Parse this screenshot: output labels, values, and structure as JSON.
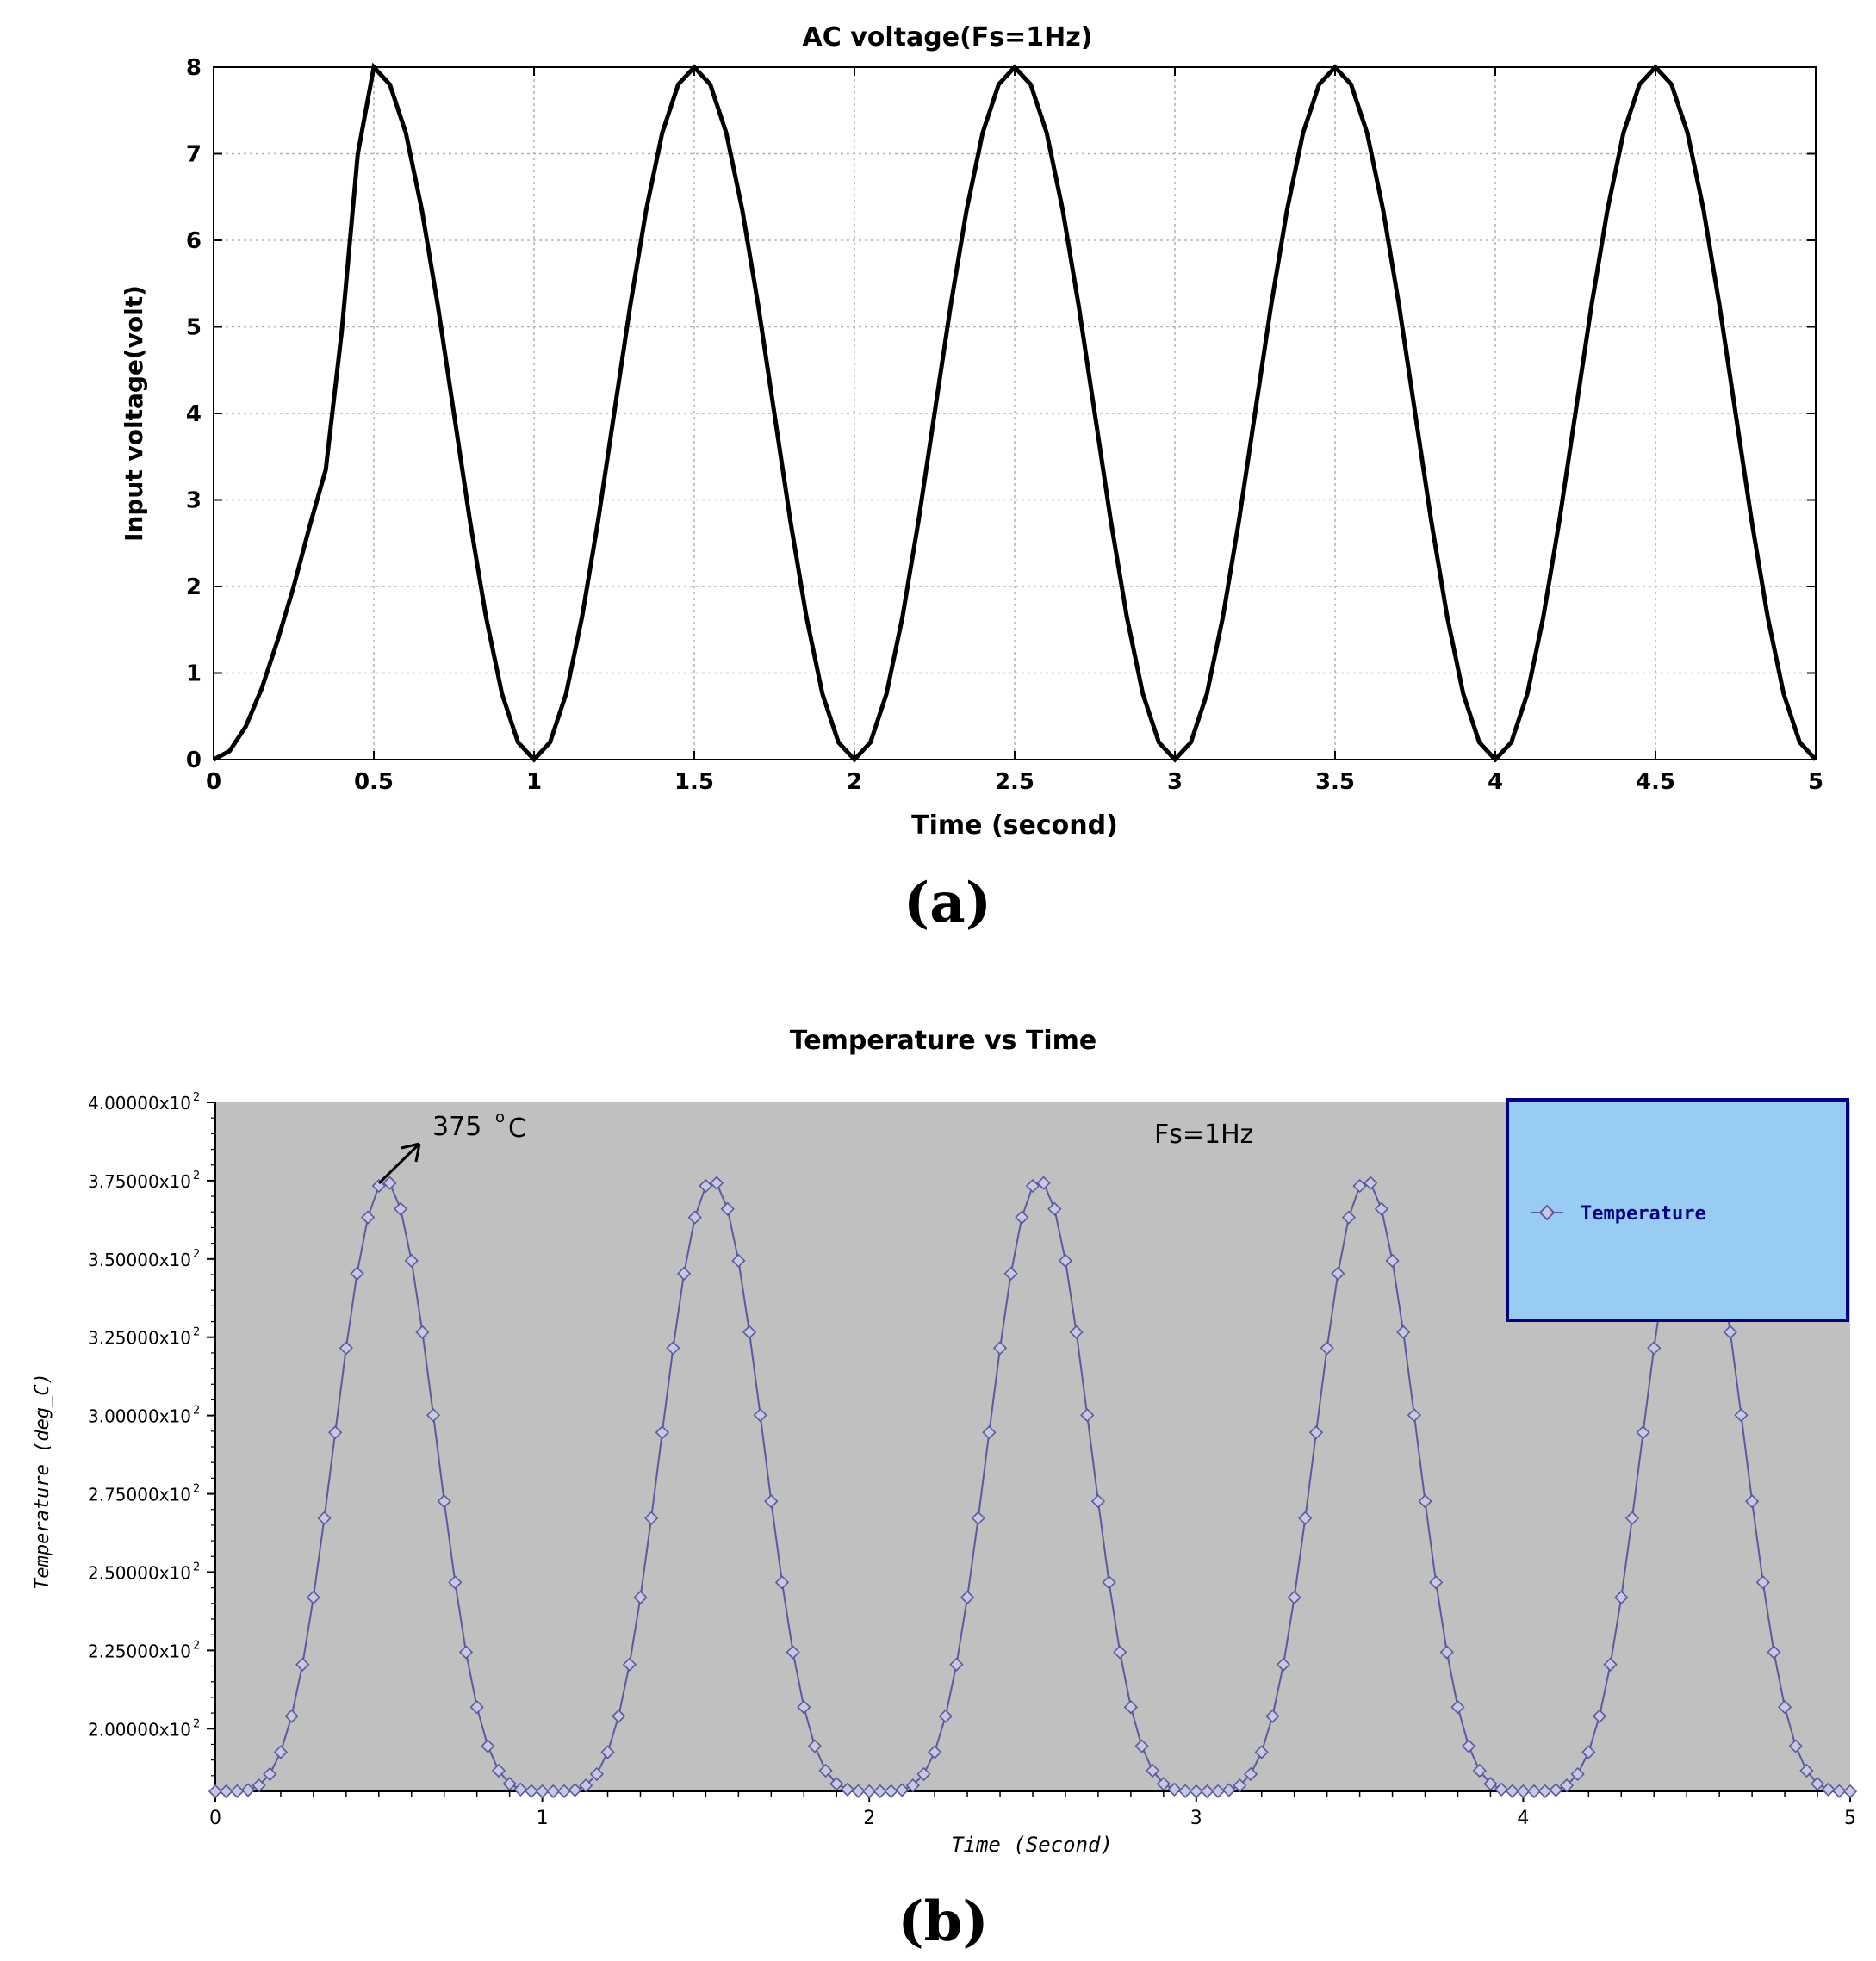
{
  "chart_data": [
    {
      "type": "line",
      "panel_label": "(a)",
      "title": "AC voltage(Fs=1Hz)",
      "xlabel": "Time (second)",
      "ylabel": "Input voltage(volt)",
      "xlim": [
        0,
        5
      ],
      "ylim": [
        0,
        8
      ],
      "x_ticks": [
        "0",
        "0.5",
        "1",
        "1.5",
        "2",
        "2.5",
        "3",
        "3.5",
        "4",
        "4.5",
        "5"
      ],
      "y_ticks": [
        "0",
        "1",
        "2",
        "3",
        "4",
        "5",
        "6",
        "7",
        "8"
      ],
      "grid": true,
      "line_color": "#000000",
      "series": [
        {
          "x": [
            0,
            0.05,
            0.1,
            0.15,
            0.2,
            0.25,
            0.3,
            0.35,
            0.4,
            0.45,
            0.5,
            0.55,
            0.6,
            0.65,
            0.7,
            0.75,
            0.8,
            0.85,
            0.9,
            0.95,
            1,
            1.05,
            1.1,
            1.15,
            1.2,
            1.25,
            1.3,
            1.35,
            1.4,
            1.45,
            1.5,
            1.55,
            1.6,
            1.65,
            1.7,
            1.75,
            1.8,
            1.85,
            1.9,
            1.95,
            2,
            2.05,
            2.1,
            2.15,
            2.2,
            2.25,
            2.3,
            2.35,
            2.4,
            2.45,
            2.5,
            2.55,
            2.6,
            2.65,
            2.7,
            2.75,
            2.8,
            2.85,
            2.9,
            2.95,
            3,
            3.05,
            3.1,
            3.15,
            3.2,
            3.25,
            3.3,
            3.35,
            3.4,
            3.45,
            3.5,
            3.55,
            3.6,
            3.65,
            3.7,
            3.75,
            3.8,
            3.85,
            3.9,
            3.95,
            4,
            4.05,
            4.1,
            4.15,
            4.2,
            4.25,
            4.3,
            4.35,
            4.4,
            4.45,
            4.5,
            4.55,
            4.6,
            4.65,
            4.7,
            4.75,
            4.8,
            4.85,
            4.9,
            4.95,
            5
          ],
          "y": [
            0,
            0.1,
            0.38,
            0.82,
            1.38,
            2,
            2.7,
            3.35,
            4.95,
            7.0,
            8,
            7.8,
            7.24,
            6.35,
            5.24,
            4.0,
            2.76,
            1.65,
            0.76,
            0.2,
            0,
            0.2,
            0.76,
            1.65,
            2.76,
            4.0,
            5.24,
            6.35,
            7.24,
            7.8,
            8,
            7.8,
            7.24,
            6.35,
            5.24,
            4.0,
            2.76,
            1.65,
            0.76,
            0.2,
            0,
            0.2,
            0.76,
            1.65,
            2.76,
            4.0,
            5.24,
            6.35,
            7.24,
            7.8,
            8,
            7.8,
            7.24,
            6.35,
            5.24,
            4.0,
            2.76,
            1.65,
            0.76,
            0.2,
            0,
            0.2,
            0.76,
            1.65,
            2.76,
            4.0,
            5.24,
            6.35,
            7.24,
            7.8,
            8,
            7.8,
            7.24,
            6.35,
            5.24,
            4.0,
            2.76,
            1.65,
            0.76,
            0.2,
            0,
            0.2,
            0.76,
            1.65,
            2.76,
            4.0,
            5.24,
            6.35,
            7.24,
            7.8,
            8,
            7.8,
            7.24,
            6.35,
            5.24,
            4.0,
            2.76,
            1.65,
            0.76,
            0.2,
            0
          ]
        }
      ]
    },
    {
      "type": "line",
      "panel_label": "(b)",
      "title": "Temperature vs Time",
      "xlabel": "Time (Second)",
      "ylabel": "Temperature (deg_C)",
      "xlim": [
        0,
        5
      ],
      "ylim": [
        180,
        400
      ],
      "x_ticks": [
        "0",
        "1",
        "2",
        "3",
        "4",
        "5"
      ],
      "y_tick_values": [
        200,
        225,
        250,
        275,
        300,
        325,
        350,
        375,
        400
      ],
      "y_tick_labels": [
        "2.00000x10",
        "2.25000x10",
        "2.50000x10",
        "2.75000x10",
        "3.00000x10",
        "3.25000x10",
        "3.50000x10",
        "3.75000x10",
        "4.00000x10"
      ],
      "y_tick_exponent": "2",
      "grid": false,
      "plot_bg": "#c0c0c0",
      "line_color": "#5a5aa0",
      "legend": {
        "position": "top-right",
        "bg": "#99ccf2",
        "border": "#000080"
      },
      "annotations": [
        {
          "text": "375",
          "unit": "C",
          "unit_degree": "o",
          "x": 0.5,
          "y": 375
        },
        {
          "text": "Fs=1Hz"
        }
      ],
      "series": [
        {
          "name": "Temperature",
          "peak_value": 375,
          "base_value": 180,
          "period": 1,
          "peak_offset": 0.52,
          "samples_per_second": 30
        }
      ]
    }
  ]
}
